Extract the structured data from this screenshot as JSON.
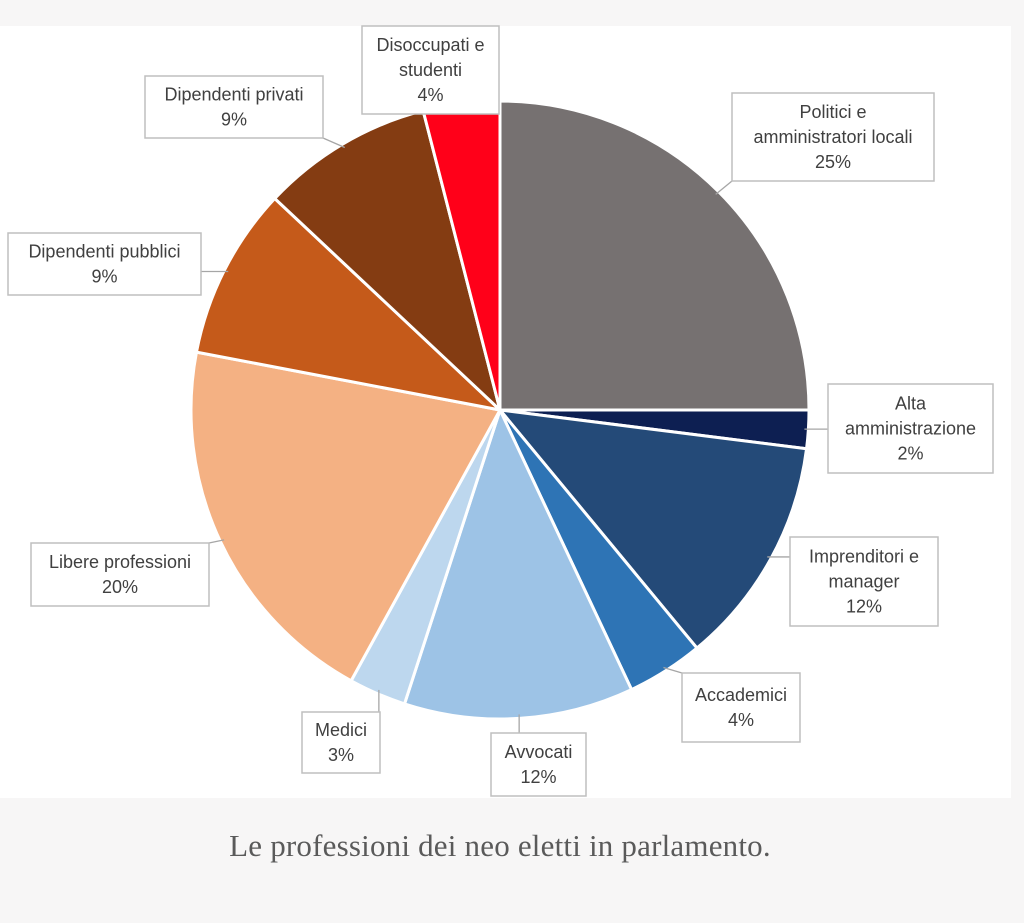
{
  "caption": "Le professioni dei neo eletti in parlamento.",
  "chart_data": {
    "type": "pie",
    "title": "",
    "start_angle_deg": 0,
    "direction": "clockwise",
    "slices": [
      {
        "label": "Politici e amministratori locali",
        "label_lines": [
          "Politici e",
          "amministratori locali"
        ],
        "value": 25,
        "value_label": "25%",
        "color": "#767171"
      },
      {
        "label": "Alta amministrazione",
        "label_lines": [
          "Alta",
          "amministrazione"
        ],
        "value": 2,
        "value_label": "2%",
        "color": "#0d1f52"
      },
      {
        "label": "Imprenditori e manager",
        "label_lines": [
          "Imprenditori e",
          "manager"
        ],
        "value": 12,
        "value_label": "12%",
        "color": "#244a78"
      },
      {
        "label": "Accademici",
        "label_lines": [
          "Accademici"
        ],
        "value": 4,
        "value_label": "4%",
        "color": "#2e74b5"
      },
      {
        "label": "Avvocati",
        "label_lines": [
          "Avvocati"
        ],
        "value": 12,
        "value_label": "12%",
        "color": "#9dc3e6"
      },
      {
        "label": "Medici",
        "label_lines": [
          "Medici"
        ],
        "value": 3,
        "value_label": "3%",
        "color": "#bdd7ee"
      },
      {
        "label": "Libere professioni",
        "label_lines": [
          "Libere professioni"
        ],
        "value": 20,
        "value_label": "20%",
        "color": "#f4b183"
      },
      {
        "label": "Dipendenti pubblici",
        "label_lines": [
          "Dipendenti pubblici"
        ],
        "value": 9,
        "value_label": "9%",
        "color": "#c55a1a"
      },
      {
        "label": "Dipendenti privati",
        "label_lines": [
          "Dipendenti privati"
        ],
        "value": 9,
        "value_label": "9%",
        "color": "#843c12"
      },
      {
        "label": "Disoccupati e studenti",
        "label_lines": [
          "Disoccupati e",
          "studenti"
        ],
        "value": 4,
        "value_label": "4%",
        "color": "#ff0019"
      }
    ]
  }
}
